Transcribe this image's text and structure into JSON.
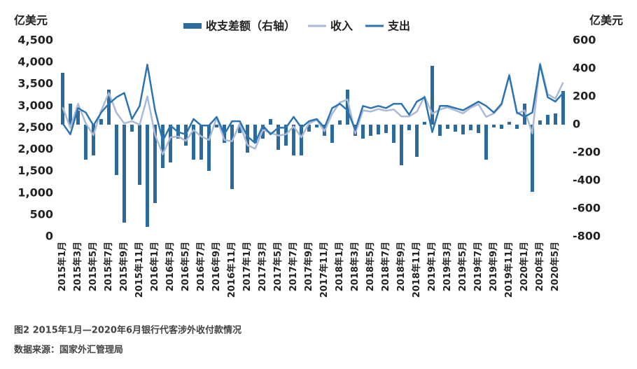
{
  "chart_data": {
    "type": "bar-line",
    "caption": "图2 2015年1月—2020年6月银行代客涉外收付款情况",
    "source": "数据来源：国家外汇管理局",
    "ylabel": "亿美元",
    "y2label": "亿美元",
    "categories": [
      "2015年1月",
      null,
      "2015年3月",
      null,
      "2015年5月",
      null,
      "2015年7月",
      null,
      "2015年9月",
      null,
      "2015年11月",
      null,
      "2016年1月",
      null,
      "2016年3月",
      null,
      "2016年5月",
      null,
      "2016年7月",
      null,
      "2016年9月",
      null,
      "2016年11月",
      null,
      "2017年1月",
      null,
      "2017年3月",
      null,
      "2017年5月",
      null,
      "2017年7月",
      null,
      "2017年9月",
      null,
      "2017年11月",
      null,
      "2018年1月",
      null,
      "2018年3月",
      null,
      "2018年5月",
      null,
      "2018年7月",
      null,
      "2018年9月",
      null,
      "2018年11月",
      null,
      "2019年1月",
      null,
      "2019年3月",
      null,
      "2019年5月",
      null,
      "2019年7月",
      null,
      "2019年9月",
      null,
      "2019年11月",
      null,
      "2020年1月",
      null,
      "2020年3月",
      null,
      "2020年5月",
      null
    ],
    "series": [
      {
        "name": "收支差额（右轴）",
        "kind": "bar",
        "axis": "y2",
        "color": "#2a6a9c",
        "values": [
          370,
          150,
          100,
          -250,
          -220,
          40,
          250,
          -360,
          -700,
          -50,
          -430,
          -730,
          -560,
          -310,
          -270,
          -100,
          -150,
          -250,
          -250,
          -330,
          -20,
          -130,
          -460,
          -60,
          -200,
          -130,
          -100,
          40,
          -180,
          -150,
          -220,
          -220,
          -50,
          -20,
          -80,
          -130,
          30,
          250,
          -80,
          -100,
          -80,
          -70,
          -60,
          -130,
          -290,
          -40,
          -230,
          20,
          420,
          -80,
          -30,
          -50,
          -70,
          -40,
          -60,
          -250,
          -20,
          -30,
          20,
          -30,
          150,
          -480,
          30,
          70,
          80,
          240
        ]
      },
      {
        "name": "收入",
        "kind": "line",
        "color": "#a9b9d6",
        "values": [
          2970,
          2500,
          3050,
          2600,
          2330,
          2890,
          3300,
          2840,
          2600,
          2650,
          2570,
          3220,
          2340,
          1890,
          2280,
          2300,
          2200,
          2450,
          2300,
          2220,
          2730,
          2220,
          2190,
          2590,
          2100,
          2020,
          2450,
          2390,
          2320,
          2350,
          2530,
          2280,
          2600,
          2680,
          2420,
          2820,
          3080,
          3150,
          2370,
          2900,
          2870,
          2930,
          2890,
          2920,
          2760,
          2760,
          2870,
          3220,
          2820,
          2920,
          2970,
          2900,
          2830,
          2960,
          3040,
          2750,
          2830,
          3020,
          3720,
          2820,
          2900,
          2370,
          3980,
          3270,
          3170,
          3540
        ]
      },
      {
        "name": "支出",
        "kind": "line",
        "color": "#2c73b2",
        "values": [
          2600,
          2350,
          2950,
          2850,
          2550,
          2850,
          3050,
          3200,
          3300,
          2700,
          3000,
          3950,
          2900,
          2200,
          2550,
          2400,
          2350,
          2700,
          2550,
          2550,
          2750,
          2350,
          2650,
          2650,
          2300,
          2150,
          2550,
          2350,
          2500,
          2500,
          2750,
          2500,
          2650,
          2700,
          2500,
          2950,
          3050,
          2900,
          2450,
          3000,
          2950,
          3000,
          2950,
          3050,
          3050,
          2800,
          3100,
          3200,
          2400,
          3000,
          3000,
          2950,
          2900,
          3000,
          3100,
          3000,
          2850,
          3050,
          3700,
          2850,
          2750,
          2850,
          3950,
          3200,
          3100,
          3300
        ]
      }
    ],
    "ylim": [
      0,
      4500
    ],
    "yticks": [
      0,
      500,
      {
        "value": 1000,
        "label": "1,000"
      },
      {
        "value": 1500,
        "label": "1,500"
      },
      {
        "value": 2000,
        "label": "2,000"
      },
      {
        "value": 2500,
        "label": "2,500"
      },
      {
        "value": 3000,
        "label": "3,000"
      },
      {
        "value": 3500,
        "label": "3,500"
      },
      {
        "value": 4000,
        "label": "4,000"
      },
      {
        "value": 4500,
        "label": "4,500"
      }
    ],
    "y2lim": [
      -800,
      600
    ],
    "y2ticks": [
      -800,
      -600,
      -400,
      -200,
      0,
      200,
      400,
      600
    ],
    "grid": false
  }
}
